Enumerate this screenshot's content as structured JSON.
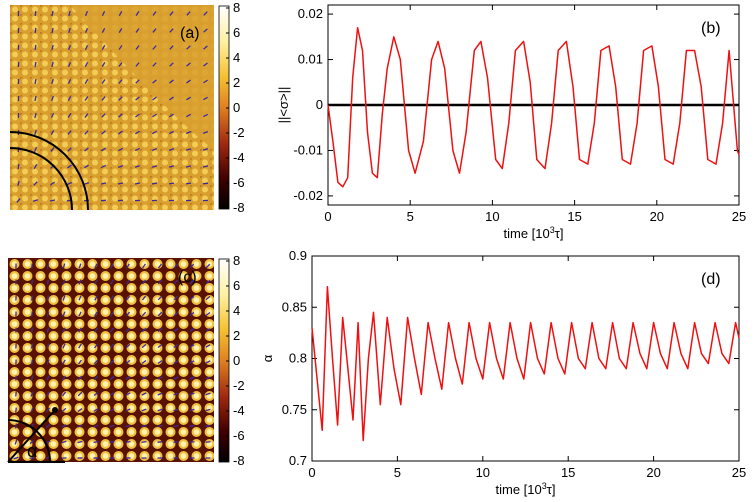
{
  "panels": {
    "a": {
      "label": "(a)",
      "colorbar_ticks": [
        "8",
        "6",
        "4",
        "2",
        "0",
        "-2",
        "-4",
        "-6",
        "-8"
      ]
    },
    "c": {
      "label": "(c)",
      "colorbar_ticks": [
        "8",
        "6",
        "4",
        "2",
        "0",
        "-2",
        "-4",
        "-6",
        "-8"
      ],
      "angle_label": "α"
    }
  },
  "colors": {
    "series": "#ee1111",
    "zero_line": "#000000",
    "pattern_base": "#d9a030"
  },
  "chart_data": [
    {
      "type": "line",
      "panel_label": "(b)",
      "title": "",
      "xlabel_prefix": "time [10",
      "xlabel_sup": "3",
      "xlabel_suffix": "τ]",
      "ylabel": "||<σ>||",
      "xlim": [
        0,
        25
      ],
      "ylim": [
        -0.022,
        0.022
      ],
      "xticks": [
        "0",
        "5",
        "10",
        "15",
        "20",
        "25"
      ],
      "yticks": [
        "0.02",
        "0.01",
        "0",
        "-0.01",
        "-0.02"
      ],
      "reference_line": 0,
      "series": [
        {
          "x": [
            0,
            0.3,
            0.6,
            0.9,
            1.2,
            1.5,
            1.8,
            2.1,
            2.4,
            2.7,
            3.0,
            3.3,
            3.6,
            4.0,
            4.4,
            4.9,
            5.3,
            5.8,
            6.3,
            6.7,
            7.1,
            7.6,
            8.0,
            8.4,
            8.9,
            9.3,
            9.7,
            10.2,
            10.6,
            11.0,
            11.4,
            11.9,
            12.3,
            12.7,
            13.2,
            13.6,
            14.0,
            14.5,
            14.9,
            15.3,
            15.8,
            16.2,
            16.6,
            17.1,
            17.5,
            17.9,
            18.4,
            18.8,
            19.2,
            19.7,
            20.1,
            20.5,
            21.0,
            21.4,
            21.8,
            22.3,
            22.7,
            23.1,
            23.6,
            24.0,
            24.4,
            24.9,
            25.0
          ],
          "y": [
            0.0,
            -0.008,
            -0.017,
            -0.018,
            -0.016,
            0.006,
            0.017,
            0.012,
            -0.006,
            -0.015,
            -0.016,
            -0.002,
            0.008,
            0.015,
            0.01,
            -0.01,
            -0.015,
            -0.008,
            0.01,
            0.014,
            0.008,
            -0.01,
            -0.015,
            -0.006,
            0.012,
            0.014,
            0.006,
            -0.012,
            -0.014,
            -0.004,
            0.012,
            0.014,
            0.005,
            -0.012,
            -0.014,
            -0.004,
            0.012,
            0.014,
            0.004,
            -0.012,
            -0.013,
            -0.004,
            0.012,
            0.013,
            0.004,
            -0.012,
            -0.013,
            -0.004,
            0.012,
            0.013,
            0.004,
            -0.012,
            -0.013,
            -0.004,
            0.012,
            0.012,
            0.004,
            -0.012,
            -0.013,
            -0.004,
            0.012,
            -0.01,
            -0.011
          ]
        }
      ]
    },
    {
      "type": "line",
      "panel_label": "(d)",
      "title": "",
      "xlabel_prefix": "time [10",
      "xlabel_sup": "3",
      "xlabel_suffix": "τ]",
      "ylabel": "α",
      "xlim": [
        0,
        25
      ],
      "ylim": [
        0.7,
        0.9
      ],
      "xticks": [
        "0",
        "5",
        "10",
        "15",
        "20",
        "25"
      ],
      "yticks": [
        "0.9",
        "0.85",
        "0.8",
        "0.75",
        "0.7"
      ],
      "series": [
        {
          "x": [
            0,
            0.3,
            0.6,
            0.9,
            1.2,
            1.5,
            1.8,
            2.1,
            2.4,
            2.7,
            3.0,
            3.3,
            3.6,
            4.0,
            4.4,
            4.8,
            5.2,
            5.6,
            6.0,
            6.4,
            6.8,
            7.2,
            7.6,
            8.0,
            8.4,
            8.8,
            9.2,
            9.6,
            10.0,
            10.4,
            10.8,
            11.2,
            11.6,
            12.0,
            12.4,
            12.8,
            13.2,
            13.6,
            14.0,
            14.4,
            14.8,
            15.2,
            15.6,
            16.0,
            16.4,
            16.8,
            17.2,
            17.6,
            18.0,
            18.4,
            18.8,
            19.2,
            19.6,
            20.0,
            20.4,
            20.8,
            21.2,
            21.6,
            22.0,
            22.4,
            22.8,
            23.2,
            23.6,
            24.0,
            24.4,
            24.8,
            25.0
          ],
          "y": [
            0.83,
            0.78,
            0.73,
            0.87,
            0.8,
            0.735,
            0.84,
            0.79,
            0.74,
            0.835,
            0.72,
            0.8,
            0.845,
            0.755,
            0.84,
            0.79,
            0.755,
            0.84,
            0.8,
            0.765,
            0.835,
            0.8,
            0.77,
            0.835,
            0.8,
            0.775,
            0.835,
            0.8,
            0.78,
            0.835,
            0.8,
            0.78,
            0.835,
            0.8,
            0.78,
            0.835,
            0.8,
            0.785,
            0.835,
            0.8,
            0.785,
            0.835,
            0.8,
            0.79,
            0.835,
            0.8,
            0.79,
            0.835,
            0.8,
            0.79,
            0.835,
            0.805,
            0.79,
            0.835,
            0.805,
            0.79,
            0.835,
            0.805,
            0.79,
            0.835,
            0.805,
            0.795,
            0.835,
            0.805,
            0.795,
            0.835,
            0.82
          ]
        }
      ]
    }
  ]
}
